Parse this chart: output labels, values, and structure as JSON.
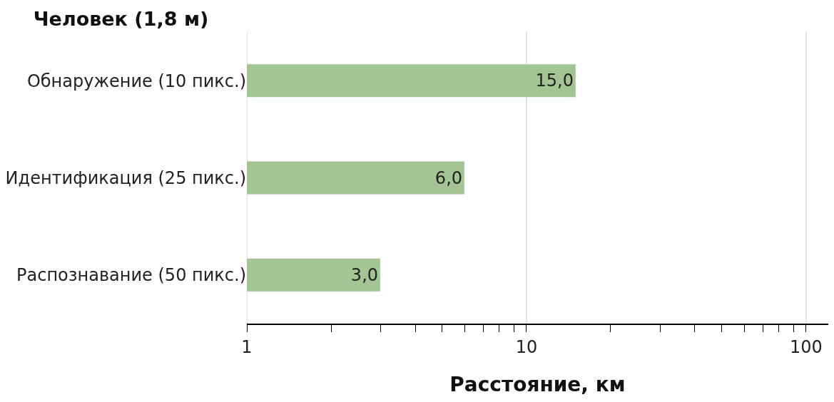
{
  "chart_data": {
    "type": "bar",
    "orientation": "horizontal",
    "title": "Человек (1,8 м)",
    "xlabel": "Расстояние, км",
    "categories": [
      "Обнаружение (10 пикс.)",
      "Идентификация (25 пикс.)",
      "Распознавание (50 пикс.)"
    ],
    "values": [
      15.0,
      6.0,
      3.0
    ],
    "color": "#a3c593",
    "value_labels": [
      "15,0",
      "6,0",
      "3,0"
    ],
    "log": "x",
    "xlim": [
      1,
      120
    ],
    "xticks": [
      1,
      {
        "value": 2,
        "label": null
      },
      {
        "value": 3,
        "label": null
      },
      {
        "value": 4,
        "label": null
      },
      {
        "value": 5,
        "label": null
      },
      {
        "value": 6,
        "label": null
      },
      {
        "value": 7,
        "label": null
      },
      {
        "value": 8,
        "label": null
      },
      {
        "value": 9,
        "label": null
      },
      10,
      {
        "value": 20,
        "label": null
      },
      {
        "value": 30,
        "label": null
      },
      {
        "value": 40,
        "label": null
      },
      {
        "value": 50,
        "label": null
      },
      {
        "value": 60,
        "label": null
      },
      {
        "value": 70,
        "label": null
      },
      {
        "value": 80,
        "label": null
      },
      {
        "value": 90,
        "label": null
      },
      100
    ],
    "grid": "x"
  }
}
